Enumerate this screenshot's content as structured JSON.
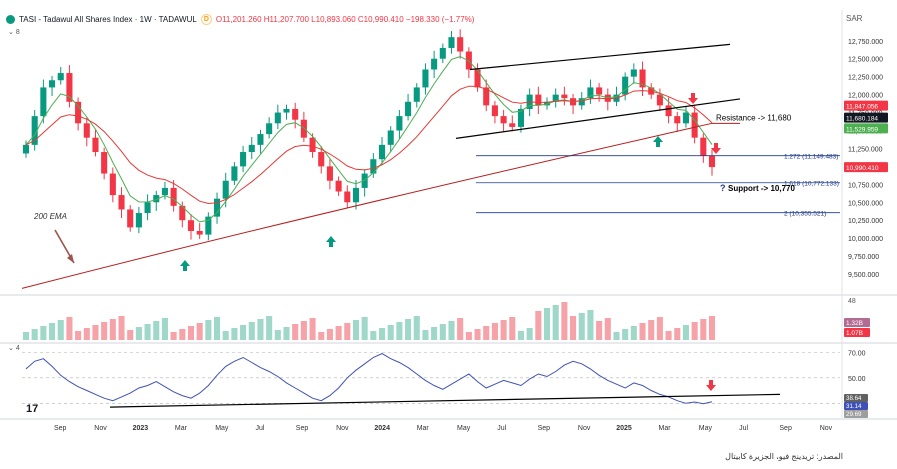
{
  "header": {
    "symbol": "TASI - Tadawul All Shares Index · 1W · TADAWUL",
    "mode_badge": "D",
    "ohlc": "O11,201.260  H11,207.700  L10,893.060  C10,990.410  −198.330 (−1.77%)",
    "indicator_count": "8"
  },
  "currency": "SAR",
  "rsi_pane_label": "4",
  "volume_pane_label": "48",
  "footer_source": "المصدر: تريدينج فيو، الجزيرة كابيتال",
  "colors": {
    "up": "#089981",
    "down": "#f23645",
    "ema_short": "#4caf50",
    "ema_mid": "#e53935",
    "ema_long": "#b71c1c",
    "rsi": "#3f51b5",
    "fib": "#1e3a8a"
  },
  "chart_data": {
    "type": "candlestick",
    "y_ticks": [
      9500,
      9750,
      10000,
      10250,
      10500,
      10750,
      11000,
      11250,
      11500,
      11750,
      12000,
      12250,
      12500,
      12750
    ],
    "x_ticks": [
      "Sep",
      "Nov",
      "2023",
      "Mar",
      "May",
      "Jul",
      "Sep",
      "Nov",
      "2024",
      "Mar",
      "May",
      "Jul",
      "Sep",
      "Nov",
      "2025",
      "Mar",
      "May",
      "Jul",
      "Sep",
      "Nov"
    ],
    "price_labels": [
      {
        "text": "11,847.056",
        "color": "#f23645"
      },
      {
        "text": "11,680.184",
        "color": "#131722"
      },
      {
        "text": "11,529.959",
        "color": "#4caf50"
      },
      {
        "text": "10,990.410",
        "color": "#f23645"
      }
    ],
    "close_series": [
      11300,
      11700,
      12100,
      12200,
      12300,
      11900,
      11600,
      11400,
      11200,
      10900,
      10600,
      10400,
      10150,
      10350,
      10500,
      10600,
      10700,
      10450,
      10250,
      10100,
      10050,
      10300,
      10550,
      10800,
      11000,
      11200,
      11300,
      11450,
      11600,
      11750,
      11800,
      11650,
      11400,
      11200,
      11000,
      10800,
      10650,
      10500,
      10700,
      10900,
      11100,
      11300,
      11500,
      11700,
      11900,
      12100,
      12350,
      12500,
      12650,
      12800,
      12600,
      12350,
      12100,
      11850,
      11700,
      11600,
      11550,
      11800,
      12000,
      11850,
      11900,
      12000,
      11950,
      11850,
      11950,
      12100,
      12000,
      11900,
      12000,
      12250,
      12350,
      12100,
      12000,
      11850,
      11700,
      11600,
      11750,
      11400,
      11150,
      10990
    ],
    "ema_200_start": 9300,
    "ema_200_end": 11600,
    "volume_labels": [
      "1.32B",
      "1.07B"
    ],
    "rsi_ticks": [
      70,
      50,
      30
    ],
    "rsi_labels": [
      "38.64",
      "31.14",
      "29.69"
    ],
    "rsi_values": [
      57,
      63,
      65,
      59,
      52,
      47,
      43,
      40,
      37,
      34,
      32,
      35,
      38,
      42,
      44,
      47,
      43,
      39,
      36,
      34,
      38,
      44,
      52,
      59,
      63,
      66,
      62,
      58,
      55,
      51,
      46,
      42,
      38,
      34,
      32,
      36,
      42,
      50,
      56,
      61,
      66,
      69,
      65,
      62,
      58,
      53,
      48,
      44,
      41,
      45,
      49,
      53,
      47,
      42,
      45,
      48,
      46,
      44,
      49,
      53,
      51,
      55,
      60,
      63,
      61,
      57,
      52,
      48,
      45,
      42,
      46,
      44,
      40,
      37,
      35,
      32,
      30,
      31,
      29.7,
      31.14
    ],
    "annotations": {
      "resistance": "Resistance -> 11,680",
      "support": "Support -> 10,770",
      "ema_label": "200 EMA",
      "fib_1272": "1.272 (11,149.483)",
      "fib_1618": "1.618 (10,772.133)",
      "fib_2": "2 (10,355.521)"
    }
  }
}
